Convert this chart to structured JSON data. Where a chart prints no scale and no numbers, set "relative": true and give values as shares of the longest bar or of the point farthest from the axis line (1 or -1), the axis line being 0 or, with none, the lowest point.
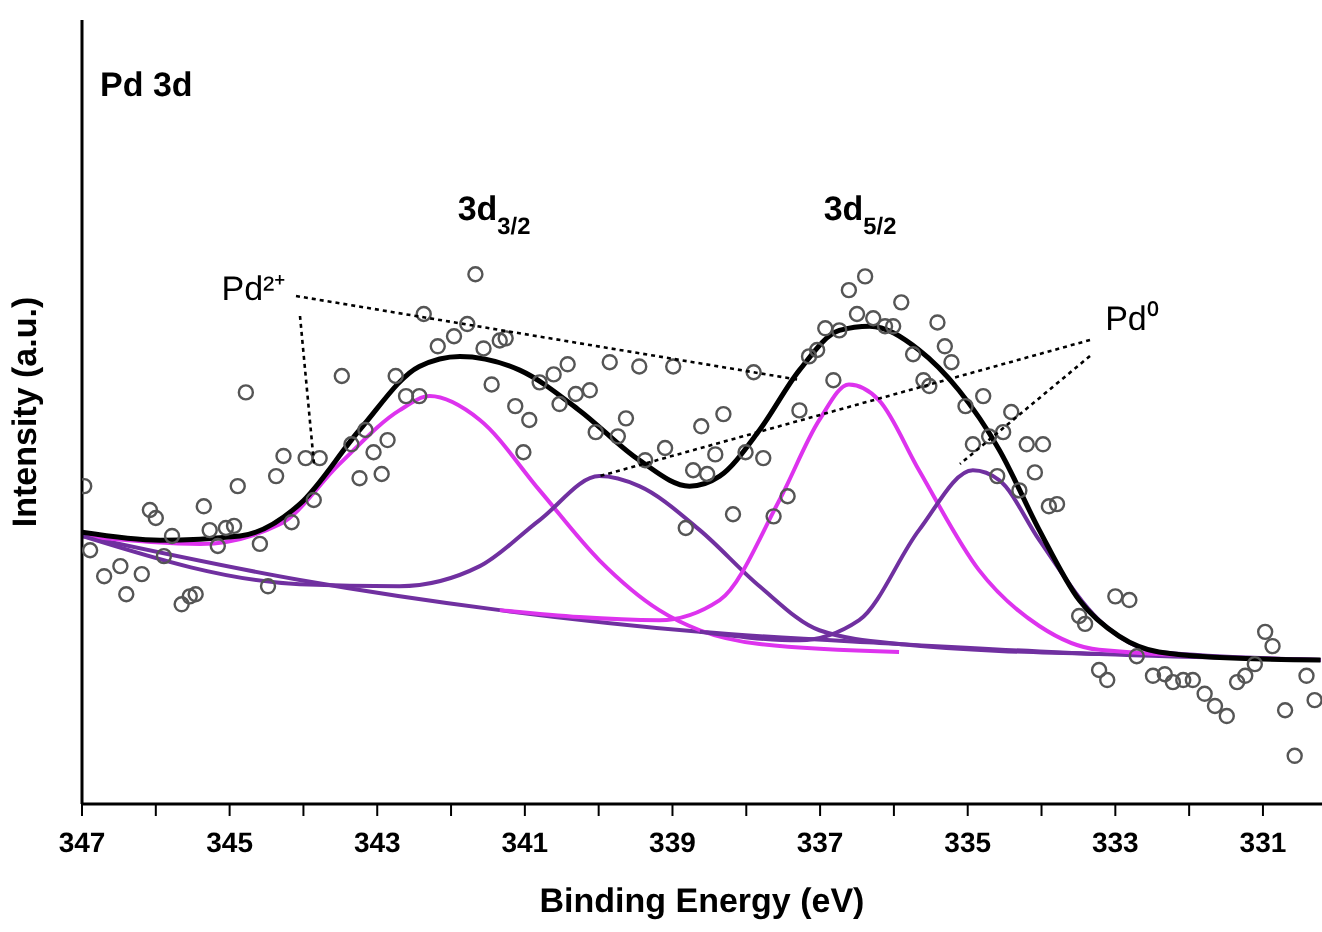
{
  "chart_data": {
    "type": "line",
    "relative": true,
    "xlabel": "Binding Energy (eV)",
    "ylabel": "Intensity (a.u.)",
    "annotations": [
      "Pd 3d",
      "3d$_{3/2}$",
      "3d$_{5/2}$",
      "Pd²⁺",
      "Pd⁰"
    ],
    "xlim": [
      347,
      330.2
    ],
    "xticks": [
      347,
      {
        "value": 346,
        "label": null
      },
      345,
      {
        "value": 344,
        "label": null
      },
      343,
      {
        "value": 342,
        "label": null
      },
      341,
      {
        "value": 340,
        "label": null
      },
      339,
      {
        "value": 338,
        "label": null
      },
      337,
      {
        "value": 336,
        "label": null
      },
      335,
      {
        "value": 334,
        "label": null
      },
      333,
      {
        "value": 332,
        "label": null
      },
      331
    ],
    "grid": false,
    "series": [
      {
        "color": "#7030a0",
        "x": [
          347.0,
          344.05,
          341.34,
          338.63,
          335.93,
          333.22,
          330.22
        ],
        "values": [
          0.506,
          0.423,
          0.366,
          0.325,
          0.302,
          0.283,
          0.272
        ]
      },
      {
        "color": "#dd33ee",
        "x": [
          347.0,
          345.4,
          344.32,
          343.51,
          342.7,
          342.29,
          341.61,
          340.8,
          339.99,
          339.18,
          338.63,
          337.82,
          335.93
        ],
        "values": [
          0.506,
          0.491,
          0.528,
          0.642,
          0.743,
          0.77,
          0.725,
          0.592,
          0.46,
          0.366,
          0.328,
          0.302,
          0.287
        ]
      },
      {
        "color": "#7030a0",
        "x": [
          347.0,
          344.05,
          342.7,
          341.61,
          340.8,
          339.99,
          339.45,
          338.63,
          337.82,
          337.01,
          335.93,
          333.22
        ],
        "values": [
          0.506,
          0.415,
          0.411,
          0.449,
          0.536,
          0.619,
          0.6,
          0.517,
          0.411,
          0.328,
          0.302,
          0.283
        ]
      },
      {
        "color": "#dd33ee",
        "x": [
          341.34,
          339.18,
          338.36,
          337.55,
          337.01,
          336.61,
          336.2,
          335.66,
          334.85,
          334.03,
          333.22,
          330.22
        ],
        "values": [
          0.366,
          0.347,
          0.385,
          0.574,
          0.725,
          0.792,
          0.762,
          0.63,
          0.442,
          0.336,
          0.291,
          0.272
        ]
      },
      {
        "color": "#7030a0",
        "x": [
          338.63,
          337.28,
          336.47,
          335.66,
          334.93,
          334.57,
          334.03,
          333.22,
          332.41,
          330.22
        ],
        "values": [
          0.325,
          0.309,
          0.347,
          0.517,
          0.63,
          0.611,
          0.498,
          0.347,
          0.287,
          0.272
        ]
      },
      {
        "color": "#000000",
        "x": [
          347.0,
          345.94,
          344.86,
          344.05,
          343.24,
          342.43,
          341.88,
          341.07,
          340.26,
          339.45,
          338.77,
          338.36,
          337.82,
          337.28,
          336.74,
          336.33,
          335.66,
          335.12,
          334.57,
          334.03,
          333.49,
          332.95,
          332.41,
          331.33,
          330.22
        ],
        "values": [
          0.513,
          0.498,
          0.506,
          0.566,
          0.706,
          0.826,
          0.845,
          0.819,
          0.743,
          0.649,
          0.6,
          0.619,
          0.706,
          0.819,
          0.894,
          0.902,
          0.857,
          0.781,
          0.668,
          0.517,
          0.385,
          0.317,
          0.287,
          0.275,
          0.272
        ]
      },
      {
        "type": "scatter",
        "color": "#555555",
        "marker": "circle",
        "x": [
          346.97,
          346.89,
          346.7,
          346.48,
          346.4,
          346.19,
          346.08,
          346.0,
          345.89,
          345.78,
          345.65,
          345.54,
          345.46,
          345.35,
          345.27,
          345.16,
          345.05,
          344.94,
          344.89,
          344.78,
          344.59,
          344.48,
          344.37,
          344.27,
          344.16,
          343.97,
          343.86,
          343.78,
          343.48,
          343.35,
          343.24,
          343.16,
          343.05,
          342.94,
          342.86,
          342.75,
          342.61,
          342.43,
          342.37,
          342.18,
          341.96,
          341.78,
          341.67,
          341.56,
          341.45,
          341.34,
          341.26,
          341.13,
          341.02,
          340.94,
          340.8,
          340.61,
          340.53,
          340.42,
          340.31,
          340.12,
          340.04,
          339.85,
          339.74,
          339.63,
          339.45,
          339.37,
          339.1,
          338.99,
          338.82,
          338.72,
          338.61,
          338.53,
          338.42,
          338.31,
          338.18,
          338.01,
          337.9,
          337.77,
          337.63,
          337.44,
          337.28,
          337.15,
          337.04,
          336.93,
          336.82,
          336.74,
          336.61,
          336.5,
          336.39,
          336.28,
          336.12,
          336.01,
          335.9,
          335.74,
          335.6,
          335.52,
          335.41,
          335.31,
          335.22,
          335.03,
          334.93,
          334.79,
          334.71,
          334.6,
          334.52,
          334.41,
          334.3,
          334.2,
          334.09,
          333.98,
          333.9,
          333.79,
          333.49,
          333.41,
          333.22,
          333.11,
          333.0,
          332.81,
          332.71,
          332.49,
          332.33,
          332.22,
          332.08,
          331.95,
          331.79,
          331.65,
          331.49,
          331.35,
          331.24,
          331.11,
          330.97,
          330.87,
          330.7,
          330.57,
          330.41,
          330.3
        ],
        "values": [
          0.6,
          0.479,
          0.43,
          0.449,
          0.396,
          0.434,
          0.555,
          0.54,
          0.468,
          0.506,
          0.377,
          0.392,
          0.396,
          0.562,
          0.517,
          0.487,
          0.521,
          0.525,
          0.6,
          0.777,
          0.491,
          0.411,
          0.619,
          0.657,
          0.532,
          0.653,
          0.574,
          0.653,
          0.808,
          0.679,
          0.615,
          0.706,
          0.664,
          0.623,
          0.687,
          0.808,
          0.77,
          0.77,
          0.925,
          0.864,
          0.883,
          0.906,
          1.0,
          0.86,
          0.792,
          0.875,
          0.879,
          0.751,
          0.664,
          0.725,
          0.796,
          0.811,
          0.755,
          0.83,
          0.774,
          0.781,
          0.702,
          0.834,
          0.694,
          0.728,
          0.826,
          0.649,
          0.672,
          0.826,
          0.521,
          0.63,
          0.713,
          0.623,
          0.66,
          0.736,
          0.547,
          0.664,
          0.815,
          0.653,
          0.543,
          0.581,
          0.743,
          0.845,
          0.857,
          0.898,
          0.8,
          0.894,
          0.97,
          0.925,
          0.996,
          0.917,
          0.902,
          0.902,
          0.947,
          0.849,
          0.8,
          0.789,
          0.909,
          0.864,
          0.834,
          0.751,
          0.679,
          0.77,
          0.694,
          0.619,
          0.702,
          0.74,
          0.592,
          0.679,
          0.626,
          0.679,
          0.562,
          0.566,
          0.355,
          0.34,
          0.253,
          0.234,
          0.392,
          0.385,
          0.279,
          0.242,
          0.245,
          0.23,
          0.234,
          0.234,
          0.208,
          0.185,
          0.166,
          0.23,
          0.242,
          0.264,
          0.325,
          0.298,
          0.177,
          0.091,
          0.242,
          0.196
        ]
      }
    ]
  }
}
